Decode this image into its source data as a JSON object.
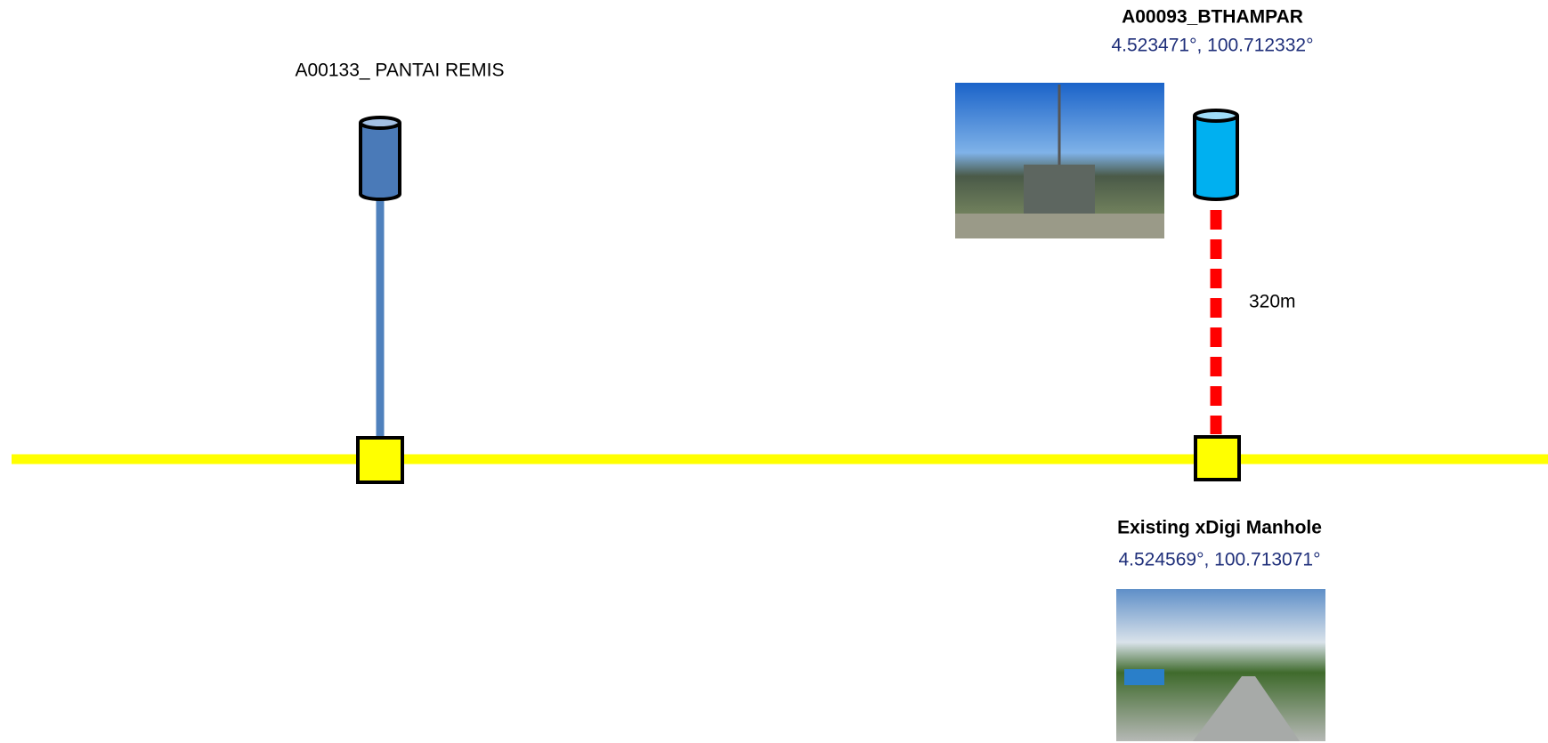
{
  "sites": [
    {
      "label": "A00133_ PANTAI REMIS"
    },
    {
      "label": "A00093_BTHAMPAR",
      "coordinates": "4.523471°, 100.712332°",
      "distance": "320m"
    }
  ],
  "manhole": {
    "label": "Existing xDigi Manhole",
    "coordinates": "4.524569°, 100.713071°"
  }
}
